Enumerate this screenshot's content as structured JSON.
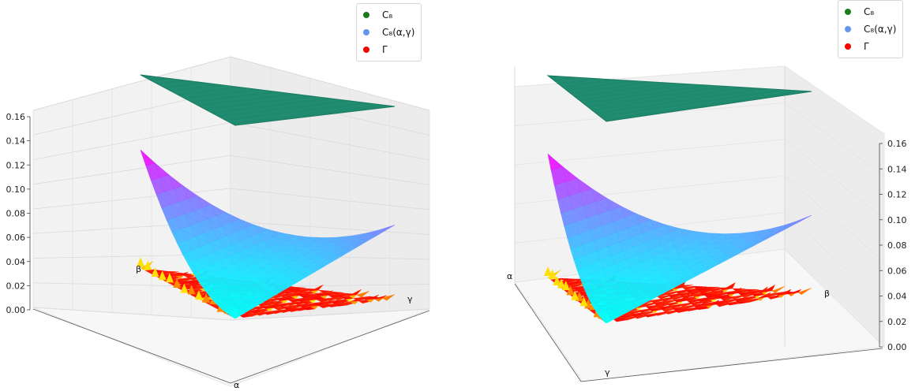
{
  "chart_data": [
    {
      "type": "surface3d",
      "view": "left",
      "zlim": [
        0,
        0.16
      ],
      "z_ticks": [
        "0.00",
        "0.02",
        "0.04",
        "0.06",
        "0.08",
        "0.10",
        "0.12",
        "0.14",
        "0.16"
      ],
      "axis_labels": {
        "alpha": "α",
        "beta": "β",
        "gamma": "γ"
      },
      "grid": true,
      "legend_placement": "top-right",
      "series": [
        {
          "name": "C₈",
          "surface": "flat",
          "z_range": [
            0.155,
            0.165
          ],
          "color": "#1f8a6e",
          "marker": "#1a7f1a"
        },
        {
          "name": "C₈(α,γ)",
          "surface": "curved",
          "z_range": [
            0.0,
            0.105
          ],
          "colormap": [
            "#00ffff",
            "#ff00ff"
          ],
          "marker": "#6495ed"
        },
        {
          "name": "Γ",
          "surface": "noisy-base",
          "z_range": [
            0.0,
            0.008
          ],
          "colormap": [
            "#ff0000",
            "#ffff00"
          ],
          "marker": "#ff0000"
        }
      ]
    },
    {
      "type": "surface3d",
      "view": "right",
      "zlim": [
        0,
        0.16
      ],
      "z_ticks": [
        "0.00",
        "0.02",
        "0.04",
        "0.06",
        "0.08",
        "0.10",
        "0.12",
        "0.14",
        "0.16"
      ],
      "axis_labels": {
        "alpha": "α",
        "beta": "β",
        "gamma": "γ"
      },
      "grid": true,
      "legend_placement": "top-right",
      "series": [
        {
          "name": "C₈",
          "surface": "flat",
          "z_range": [
            0.155,
            0.165
          ],
          "color": "#1f8a6e",
          "marker": "#1a7f1a"
        },
        {
          "name": "C₈(α,γ)",
          "surface": "curved",
          "z_range": [
            0.0,
            0.105
          ],
          "colormap": [
            "#00ffff",
            "#ff00ff"
          ],
          "marker": "#6495ed"
        },
        {
          "name": "Γ",
          "surface": "noisy-base",
          "z_range": [
            0.0,
            0.008
          ],
          "colormap": [
            "#ff0000",
            "#ffff00"
          ],
          "marker": "#ff0000"
        }
      ]
    }
  ]
}
